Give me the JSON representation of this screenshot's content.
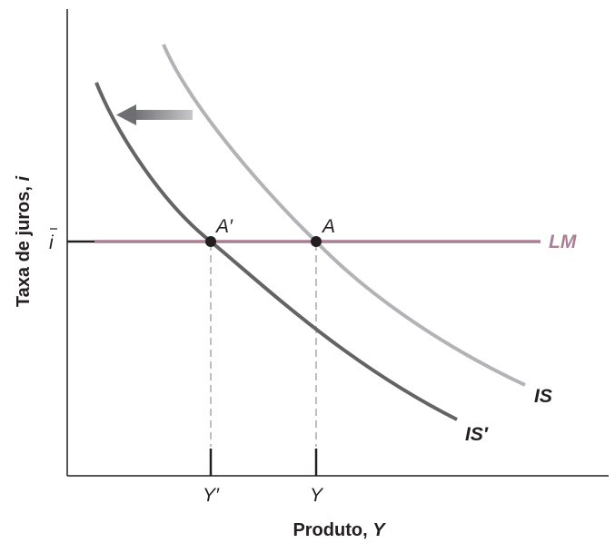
{
  "axes": {
    "y_title": "Taxa de juros, ",
    "y_title_var": "i",
    "x_title": "Produto, ",
    "x_title_var": "Y",
    "y_tick": "i",
    "x_tick_1": "Y′",
    "x_tick_2": "Y"
  },
  "curves": {
    "lm_label": "LM",
    "is_label": "IS",
    "is_prime_label": "IS′"
  },
  "points": {
    "a_prime_label": "A′",
    "a_label": "A"
  },
  "colors": {
    "axis": "#231f20",
    "lm": "#a97f94",
    "is": "#b1b3b6",
    "is_prime": "#636466",
    "arrow": "#8a8c8e",
    "guide": "#a7a9ac"
  }
}
